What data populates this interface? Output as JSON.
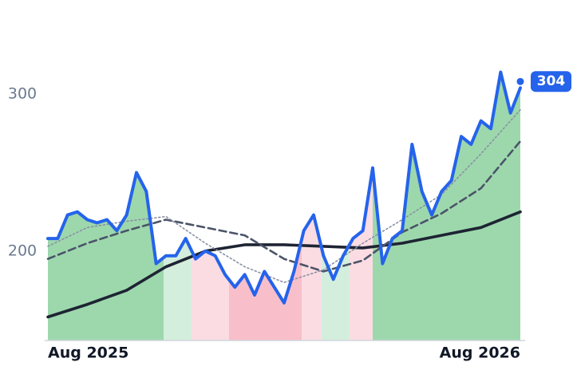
{
  "chart_data": {
    "type": "line",
    "xlim": [
      0,
      12
    ],
    "xticks": [
      {
        "value": 0,
        "label": "Aug 2025"
      },
      {
        "value": 12,
        "label": "Aug 2026"
      }
    ],
    "ylim": [
      143,
      360
    ],
    "yticks": [
      200,
      300
    ],
    "grid": false,
    "bands": [
      {
        "from": 0,
        "to": 2.94,
        "color": "#9dd8ad"
      },
      {
        "from": 2.94,
        "to": 3.65,
        "color": "#d3eedc"
      },
      {
        "from": 3.65,
        "to": 4.6,
        "color": "#fbdce3"
      },
      {
        "from": 4.6,
        "to": 6.45,
        "color": "#f8bfca"
      },
      {
        "from": 6.45,
        "to": 6.95,
        "color": "#fbdce3"
      },
      {
        "from": 6.95,
        "to": 7.66,
        "color": "#d3eedc"
      },
      {
        "from": 7.66,
        "to": 8.25,
        "color": "#fbdce3"
      },
      {
        "from": 8.25,
        "to": 12,
        "color": "#9dd8ad"
      }
    ],
    "series": [
      {
        "color": "#2563eb",
        "x": [
          0,
          0.25,
          0.5,
          0.75,
          1,
          1.25,
          1.5,
          1.75,
          2,
          2.25,
          2.5,
          2.75,
          3,
          3.25,
          3.5,
          3.75,
          4,
          4.25,
          4.5,
          4.75,
          5,
          5.25,
          5.5,
          5.75,
          6,
          6.25,
          6.5,
          6.75,
          7,
          7.25,
          7.5,
          7.75,
          8,
          8.25,
          8.5,
          8.75,
          9,
          9.25,
          9.5,
          9.75,
          10,
          10.25,
          10.5,
          10.75,
          11,
          11.25,
          11.5,
          11.75,
          12
        ],
        "values": [
          208,
          208,
          223,
          225,
          220,
          218,
          220,
          213,
          223,
          250,
          238,
          192,
          197,
          197,
          208,
          195,
          200,
          197,
          185,
          177,
          185,
          172,
          187,
          177,
          167,
          187,
          213,
          223,
          197,
          182,
          197,
          208,
          213,
          253,
          192,
          208,
          213,
          268,
          238,
          223,
          238,
          245,
          273,
          268,
          283,
          278,
          314,
          288,
          304
        ]
      },
      {
        "color": "#8a90a3",
        "x": [
          0,
          1,
          2,
          3,
          4,
          5,
          6,
          7,
          8,
          9,
          10,
          11,
          12
        ],
        "values": [
          203,
          215,
          219,
          222,
          205,
          190,
          180,
          188,
          205,
          220,
          236,
          262,
          290
        ]
      },
      {
        "color": "#4b5468",
        "x": [
          0,
          1,
          2,
          3,
          4,
          5,
          6,
          7,
          8,
          9,
          10,
          11,
          12
        ],
        "values": [
          195,
          205,
          213,
          220,
          215,
          210,
          195,
          187,
          194,
          212,
          224,
          240,
          270
        ]
      },
      {
        "color": "#1e2433",
        "x": [
          0,
          1,
          2,
          3,
          4,
          5,
          6,
          7,
          8,
          9,
          10,
          11,
          12
        ],
        "values": [
          158,
          166,
          175,
          190,
          200,
          204,
          204,
          203,
          202,
          205,
          210,
          215,
          225
        ]
      }
    ]
  }
}
